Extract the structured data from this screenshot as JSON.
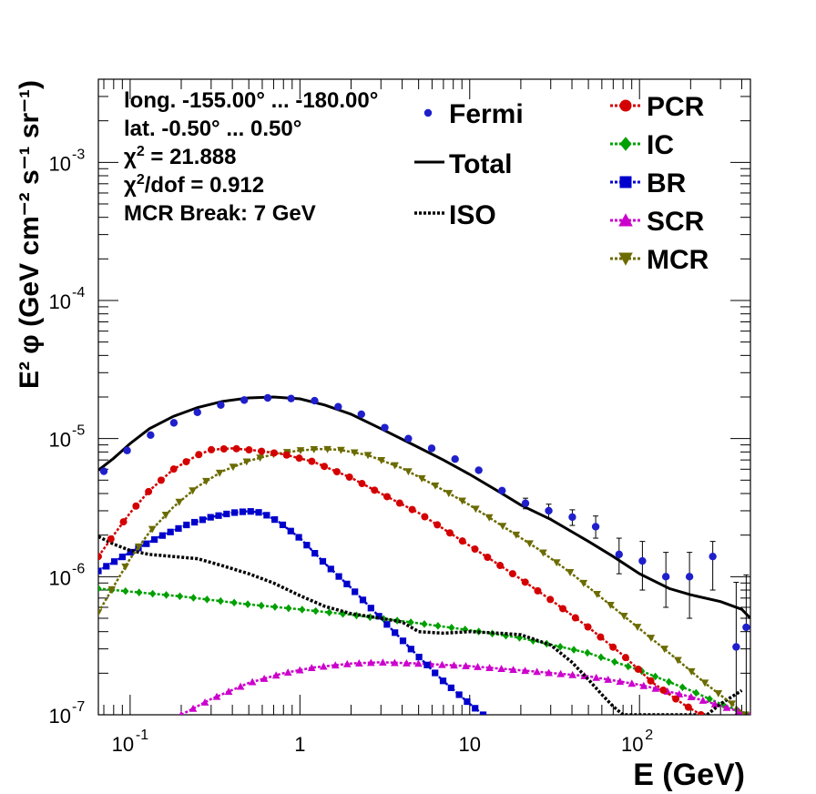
{
  "chart_data": {
    "type": "line",
    "title": "",
    "xlabel": "E (GeV)",
    "ylabel": "E² φ (GeV cm⁻² s⁻¹ sr⁻¹)",
    "xscale": "log",
    "yscale": "log",
    "xlim": [
      0.065,
      450
    ],
    "ylim": [
      1e-07,
      0.004
    ],
    "x_ticks": [
      {
        "v": 0.1,
        "base": "10",
        "exp": "-1"
      },
      {
        "v": 1,
        "base": "1",
        "exp": ""
      },
      {
        "v": 10,
        "base": "10",
        "exp": ""
      },
      {
        "v": 100,
        "base": "10",
        "exp": "2"
      }
    ],
    "y_ticks": [
      {
        "v": 1e-07,
        "base": "10",
        "exp": "-7"
      },
      {
        "v": 1e-06,
        "base": "10",
        "exp": "-6"
      },
      {
        "v": 1e-05,
        "base": "10",
        "exp": "-5"
      },
      {
        "v": 0.0001,
        "base": "10",
        "exp": "-4"
      },
      {
        "v": 0.001,
        "base": "10",
        "exp": "-3"
      }
    ],
    "info_lines": [
      {
        "text": "long. -155.00° ... -180.00°",
        "sup": "",
        "after": ""
      },
      {
        "text": "lat. -0.50° ... 0.50°",
        "sup": "",
        "after": ""
      },
      {
        "text": "χ",
        "sup": "2",
        "after": " = 21.888"
      },
      {
        "text": "χ",
        "sup": "2",
        "after": "/dof = 0.912"
      },
      {
        "text": "MCR Break:  7 GeV",
        "sup": "",
        "after": ""
      }
    ],
    "legend_left": [
      {
        "name": "Fermi",
        "kind": "points",
        "color": "#1f1fcc"
      },
      {
        "name": "Total",
        "kind": "solid",
        "color": "#000000"
      },
      {
        "name": "ISO",
        "kind": "dotted",
        "color": "#000000"
      }
    ],
    "legend_right": [
      {
        "name": "PCR",
        "kind": "circle",
        "color": "#d40000"
      },
      {
        "name": "IC",
        "kind": "diamond",
        "color": "#00a000"
      },
      {
        "name": "BR",
        "kind": "square",
        "color": "#0000cc"
      },
      {
        "name": "SCR",
        "kind": "triangle-up",
        "color": "#cc00cc"
      },
      {
        "name": "MCR",
        "kind": "triangle-down",
        "color": "#6b6b00"
      }
    ],
    "fermi": {
      "x": [
        0.07,
        0.096,
        0.132,
        0.181,
        0.249,
        0.342,
        0.47,
        0.646,
        0.887,
        1.22,
        1.68,
        2.3,
        3.16,
        4.35,
        5.97,
        8.2,
        11.3,
        15.5,
        21.3,
        29.2,
        40.2,
        55.2,
        75.8,
        104,
        143,
        197,
        270,
        371,
        425
      ],
      "y": [
        5.8e-06,
        8.2e-06,
        1.06e-05,
        1.3e-05,
        1.55e-05,
        1.75e-05,
        1.9e-05,
        1.97e-05,
        1.95e-05,
        1.88e-05,
        1.7e-05,
        1.5e-05,
        1.2e-05,
        1e-05,
        8.5e-06,
        7.1e-06,
        5.9e-06,
        4.2e-06,
        3.4e-06,
        3e-06,
        2.7e-06,
        2.3e-06,
        1.45e-06,
        1.3e-06,
        1e-06,
        1e-06,
        1.4e-06,
        3.1e-07,
        4.3e-07
      ],
      "yerr_lo": [
        0,
        0,
        0,
        0,
        0,
        0,
        0,
        0,
        0,
        0,
        0,
        0,
        0,
        0,
        0,
        0,
        0,
        0,
        3e-07,
        3.5e-07,
        3.5e-07,
        4e-07,
        4e-07,
        5e-07,
        4e-07,
        5e-07,
        6e-07,
        2.1e-07,
        3.3e-07
      ],
      "yerr_hi": [
        0,
        0,
        0,
        0,
        0,
        0,
        0,
        0,
        0,
        0,
        0,
        0,
        0,
        0,
        0,
        0,
        0,
        0,
        3e-07,
        3.5e-07,
        3.5e-07,
        4.5e-07,
        4.5e-07,
        5e-07,
        5e-07,
        5e-07,
        4e-07,
        6e-07,
        6e-07
      ]
    },
    "series": [
      {
        "name": "Total",
        "color": "#000000",
        "style": "solid",
        "marker": "none",
        "x": [
          0.065,
          0.08,
          0.1,
          0.13,
          0.18,
          0.25,
          0.35,
          0.5,
          0.7,
          1.0,
          1.4,
          2.0,
          3.0,
          4.5,
          7.0,
          10,
          15,
          20,
          30,
          50,
          70,
          100,
          150,
          200,
          300,
          400,
          450
        ],
        "y": [
          5.9e-06,
          7.2e-06,
          9.2e-06,
          1.18e-05,
          1.45e-05,
          1.68e-05,
          1.86e-05,
          1.97e-05,
          2e-05,
          1.94e-05,
          1.75e-05,
          1.5e-05,
          1.18e-05,
          9.2e-06,
          7e-06,
          5.5e-06,
          4.1e-06,
          3.3e-06,
          2.6e-06,
          1.8e-06,
          1.4e-06,
          1.05e-06,
          8.2e-07,
          7.4e-07,
          6.6e-07,
          5.8e-07,
          5e-07
        ]
      },
      {
        "name": "ISO",
        "color": "#000000",
        "style": "dotted",
        "marker": "none",
        "x": [
          0.065,
          0.08,
          0.1,
          0.13,
          0.18,
          0.25,
          0.35,
          0.5,
          0.7,
          1.0,
          1.4,
          2.0,
          3.0,
          4.0,
          5.0,
          7.0,
          10,
          15,
          20,
          30,
          40,
          50,
          60,
          70,
          80,
          250,
          300,
          400
        ],
        "y": [
          1.95e-06,
          1.72e-06,
          1.55e-06,
          1.45e-06,
          1.4e-06,
          1.35e-06,
          1.2e-06,
          1.05e-06,
          9e-07,
          7.3e-07,
          6.1e-07,
          5.4e-07,
          5e-07,
          4.7e-07,
          4e-07,
          3.9e-07,
          4e-07,
          3.9e-07,
          3.8e-07,
          3.2e-07,
          2.4e-07,
          1.8e-07,
          1.4e-07,
          1.15e-07,
          1e-07,
          1e-07,
          1.2e-07,
          1.5e-07
        ]
      },
      {
        "name": "PCR",
        "color": "#d40000",
        "style": "marker-line",
        "marker": "circle",
        "x": [
          0.065,
          0.08,
          0.1,
          0.13,
          0.18,
          0.25,
          0.3,
          0.4,
          0.55,
          0.8,
          1.2,
          2.0,
          3.0,
          5.0,
          8.0,
          12,
          20,
          30,
          50,
          80,
          120,
          180,
          230
        ],
        "y": [
          1.4e-06,
          2e-06,
          2.9e-06,
          4.2e-06,
          6e-06,
          7.6e-06,
          8.3e-06,
          8.5e-06,
          8.2e-06,
          7.7e-06,
          6.8e-06,
          5.2e-06,
          4e-06,
          2.9e-06,
          2e-06,
          1.45e-06,
          9.6e-07,
          6.8e-07,
          4.3e-07,
          2.7e-07,
          1.7e-07,
          1.2e-07,
          1e-07
        ]
      },
      {
        "name": "IC",
        "color": "#00a000",
        "style": "marker-line",
        "marker": "diamond",
        "x": [
          0.065,
          0.1,
          0.2,
          0.5,
          1,
          2,
          5,
          10,
          20,
          50,
          100,
          200,
          300,
          450
        ],
        "y": [
          8.2e-07,
          7.8e-07,
          7.2e-07,
          6.3e-07,
          5.8e-07,
          5.3e-07,
          4.6e-07,
          4.1e-07,
          3.6e-07,
          2.8e-07,
          2.1e-07,
          1.5e-07,
          1.2e-07,
          1e-07
        ]
      },
      {
        "name": "BR",
        "color": "#0000cc",
        "style": "marker-line",
        "marker": "square",
        "x": [
          0.065,
          0.1,
          0.15,
          0.22,
          0.3,
          0.4,
          0.5,
          0.6,
          0.75,
          1.0,
          1.4,
          2.0,
          3.0,
          4.5,
          7.0,
          10,
          12
        ],
        "y": [
          1.1e-06,
          1.5e-06,
          1.95e-06,
          2.4e-06,
          2.7e-06,
          2.9e-06,
          2.98e-06,
          2.9e-06,
          2.5e-06,
          1.9e-06,
          1.25e-06,
          8.3e-07,
          5e-07,
          3e-07,
          1.75e-07,
          1.2e-07,
          1e-07
        ]
      },
      {
        "name": "SCR",
        "color": "#cc00cc",
        "style": "marker-line",
        "marker": "triangle-up",
        "x": [
          0.2,
          0.3,
          0.5,
          0.8,
          1.2,
          2.0,
          3.0,
          5.0,
          10,
          20,
          50,
          100,
          200,
          450
        ],
        "y": [
          1e-07,
          1.3e-07,
          1.7e-07,
          2e-07,
          2.2e-07,
          2.35e-07,
          2.4e-07,
          2.35e-07,
          2.25e-07,
          2.1e-07,
          1.9e-07,
          1.65e-07,
          1.35e-07,
          1e-07
        ]
      },
      {
        "name": "MCR",
        "color": "#6b6b00",
        "style": "marker-line",
        "marker": "triangle-down",
        "x": [
          0.065,
          0.08,
          0.1,
          0.13,
          0.18,
          0.25,
          0.35,
          0.5,
          0.7,
          1.0,
          1.3,
          1.7,
          2.5,
          4,
          6,
          10,
          15,
          25,
          40,
          60,
          100,
          150,
          250,
          350,
          420
        ],
        "y": [
          5.5e-07,
          8.5e-07,
          1.35e-06,
          2.1e-06,
          3.2e-06,
          4.5e-06,
          5.8e-06,
          6.9e-06,
          7.7e-06,
          8.2e-06,
          8.4e-06,
          8.3e-06,
          7.6e-06,
          6.1e-06,
          4.7e-06,
          3.3e-06,
          2.4e-06,
          1.6e-06,
          1.05e-06,
          7e-07,
          4.2e-07,
          2.8e-07,
          1.65e-07,
          1.2e-07,
          1e-07
        ]
      }
    ]
  }
}
